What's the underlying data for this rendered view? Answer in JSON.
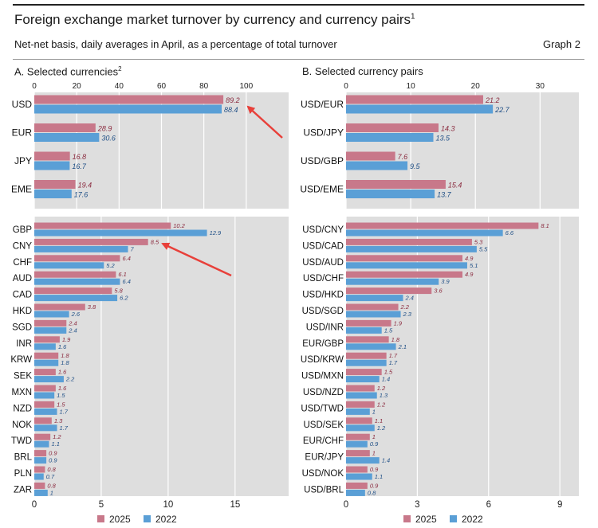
{
  "header": {
    "title": "Foreign exchange market turnover by currency and currency pairs",
    "title_note": "1",
    "subtitle": "Net-net basis, daily averages in April, as a percentage of total turnover",
    "graph_label": "Graph 2"
  },
  "legend": {
    "series_2025": "2025",
    "series_2022": "2022"
  },
  "colors": {
    "series_2025": "#c8788a",
    "series_2022": "#5a9fd6",
    "panel_bg": "#dedede",
    "arrow": "#e8403a"
  },
  "chart_data": [
    {
      "type": "bar",
      "orientation": "horizontal",
      "panel": "A",
      "title": "A. Selected currencies",
      "title_note": "2",
      "series": [
        {
          "name": "2025"
        },
        {
          "name": "2022"
        }
      ],
      "groups": [
        {
          "xlim": [
            0,
            120
          ],
          "ticks": [
            0,
            20,
            40,
            60,
            80,
            100
          ],
          "axis": "top",
          "categories": [
            "USD",
            "EUR",
            "JPY",
            "EME"
          ],
          "values_2025": [
            89.2,
            28.9,
            16.8,
            19.4
          ],
          "values_2022": [
            88.4,
            30.6,
            16.7,
            17.6
          ]
        },
        {
          "xlim": [
            0,
            19
          ],
          "ticks": [
            0,
            5,
            10,
            15
          ],
          "axis": "bottom",
          "categories": [
            "GBP",
            "CNY",
            "CHF",
            "AUD",
            "CAD",
            "HKD",
            "SGD",
            "INR",
            "KRW",
            "SEK",
            "MXN",
            "NZD",
            "NOK",
            "TWD",
            "BRL",
            "PLN",
            "ZAR"
          ],
          "values_2025": [
            10.2,
            8.5,
            6.4,
            6.1,
            5.8,
            3.8,
            2.4,
            1.9,
            1.8,
            1.6,
            1.6,
            1.5,
            1.3,
            1.2,
            0.9,
            0.8,
            0.8
          ],
          "values_2022": [
            12.9,
            7,
            5.2,
            6.4,
            6.2,
            2.6,
            2.4,
            1.6,
            1.8,
            2.2,
            1.5,
            1.7,
            1.7,
            1.1,
            0.9,
            0.7,
            1.0
          ]
        }
      ]
    },
    {
      "type": "bar",
      "orientation": "horizontal",
      "panel": "B",
      "title": "B. Selected currency pairs",
      "series": [
        {
          "name": "2025"
        },
        {
          "name": "2022"
        }
      ],
      "groups": [
        {
          "xlim": [
            0,
            36
          ],
          "ticks": [
            0,
            10,
            20,
            30
          ],
          "axis": "top",
          "categories": [
            "USD/EUR",
            "USD/JPY",
            "USD/GBP",
            "USD/EME"
          ],
          "values_2025": [
            21.2,
            14.3,
            7.6,
            15.4
          ],
          "values_2022": [
            22.7,
            13.5,
            9.5,
            13.7
          ]
        },
        {
          "xlim": [
            0,
            9.8
          ],
          "ticks": [
            0,
            3,
            6,
            9
          ],
          "axis": "bottom",
          "categories": [
            "USD/CNY",
            "USD/CAD",
            "USD/AUD",
            "USD/CHF",
            "USD/HKD",
            "USD/SGD",
            "USD/INR",
            "EUR/GBP",
            "USD/KRW",
            "USD/MXN",
            "USD/NZD",
            "USD/TWD",
            "USD/SEK",
            "EUR/CHF",
            "EUR/JPY",
            "USD/NOK",
            "USD/BRL"
          ],
          "values_2025": [
            8.1,
            5.3,
            4.9,
            4.9,
            3.6,
            2.2,
            1.9,
            1.8,
            1.7,
            1.5,
            1.2,
            1.2,
            1.1,
            1.0,
            1.0,
            0.9,
            0.9
          ],
          "values_2022": [
            6.6,
            5.5,
            5.1,
            3.9,
            2.4,
            2.3,
            1.5,
            2.1,
            1.7,
            1.4,
            1.3,
            1.0,
            1.2,
            0.9,
            1.4,
            1.1,
            0.8
          ]
        }
      ]
    }
  ]
}
